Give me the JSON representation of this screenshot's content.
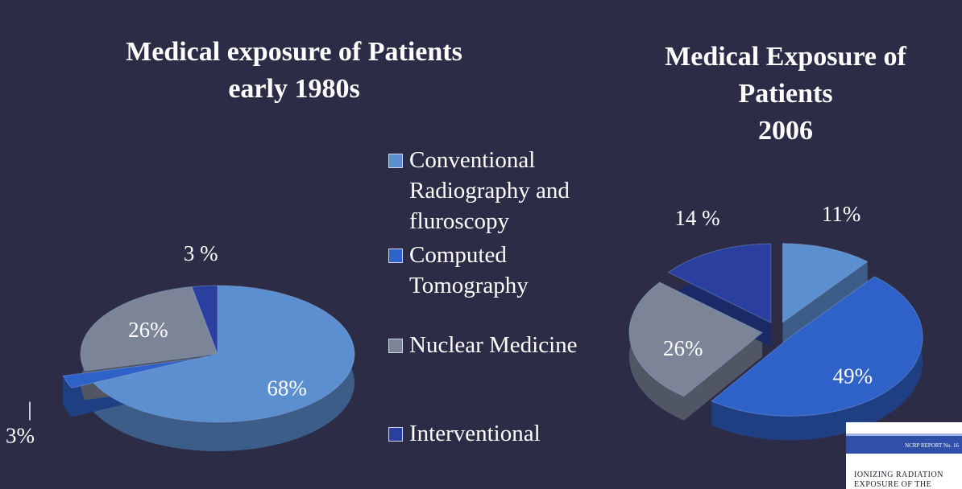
{
  "chart_data": [
    {
      "type": "pie",
      "title": "Medical exposure of Patients\nearly 1980s",
      "categories": [
        "Conventional Radiography and fluroscopy",
        "Computed Tomography",
        "Nuclear Medicine",
        "Interventional"
      ],
      "values": [
        68,
        3,
        26,
        3
      ],
      "value_labels": [
        "68%",
        "3%",
        "26%",
        "3 %"
      ],
      "colors": [
        "#5b8fd0",
        "#2f62c8",
        "#7c8598",
        "#2b409e"
      ]
    },
    {
      "type": "pie",
      "title": "Medical Exposure of\nPatients\n2006",
      "values": [
        11,
        49,
        26,
        14
      ],
      "value_labels": [
        "11%",
        "49%",
        "26%",
        "14 %"
      ],
      "colors": [
        "#5b8fd0",
        "#2f62c8",
        "#7c8598",
        "#2b409e"
      ]
    }
  ],
  "report_cover": {
    "label": "NCRP REPORT No. 16",
    "title": "IONIZING RADIATION EXPOSURE OF THE"
  }
}
